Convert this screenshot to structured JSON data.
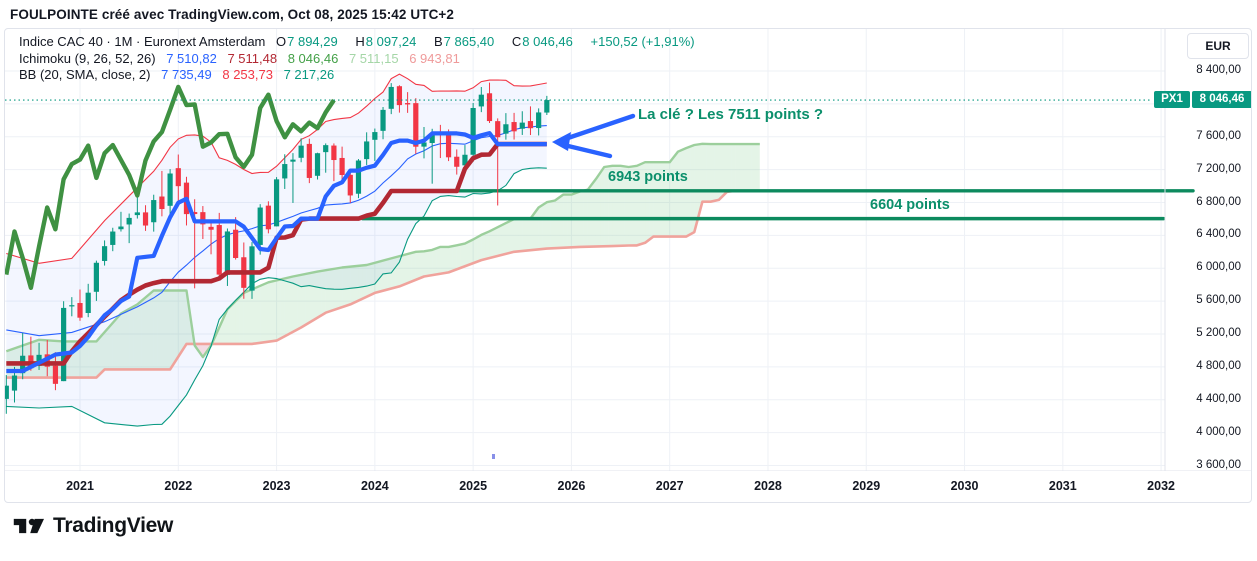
{
  "header": {
    "title": "FOULPOINTE créé avec TradingView.com, Oct 08, 2025 15:42 UTC+2"
  },
  "legend": {
    "main": {
      "symbol_line": "Indice CAC 40 · 1M · Euronext Amsterdam",
      "o_label": "O",
      "o": "7 894,29",
      "h_label": "H",
      "h": "8 097,24",
      "l_label": "B",
      "l": "7 865,40",
      "c_label": "C",
      "c": "8 046,46",
      "change": "+150,52 (+1,91%)"
    },
    "ichimoku": {
      "name": "Ichimoku (9, 26, 52, 26)",
      "conversion": "7 510,82",
      "base": "7 511,48",
      "lagging": "8 046,46",
      "lead1": "7 511,15",
      "lead2": "6 943,81"
    },
    "bb": {
      "name": "BB (20, SMA, close, 2)",
      "basis": "7 735,49",
      "upper": "8 253,73",
      "lower": "7 217,26"
    }
  },
  "annotations": {
    "key_text": "La clé ? Les 7511 points ?",
    "level1_text": "6943 points",
    "level2_text": "6604 points"
  },
  "price_axis": {
    "currency_label": "EUR",
    "ticker_badge": "PX1",
    "last_price_label": "8 046,46",
    "ticks": [
      {
        "price": 8400,
        "label": "8 400,00"
      },
      {
        "price": 8000,
        "label": ""
      },
      {
        "price": 7600,
        "label": "7 600,00"
      },
      {
        "price": 7200,
        "label": "7 200,00"
      },
      {
        "price": 6800,
        "label": "6 800,00"
      },
      {
        "price": 6400,
        "label": "6 400,00"
      },
      {
        "price": 6000,
        "label": "6 000,00"
      },
      {
        "price": 5600,
        "label": "5 600,00"
      },
      {
        "price": 5200,
        "label": "5 200,00"
      },
      {
        "price": 4800,
        "label": "4 800,00"
      },
      {
        "price": 4400,
        "label": "4 400,00"
      },
      {
        "price": 4000,
        "label": "4 000,00"
      },
      {
        "price": 3600,
        "label": "3 600,00"
      }
    ]
  },
  "time_axis": {
    "years": [
      "2021",
      "2022",
      "2023",
      "2024",
      "2025",
      "2026",
      "2027",
      "2028",
      "2029",
      "2030",
      "2031",
      "2032"
    ]
  },
  "footer": {
    "brand": "TradingView"
  },
  "colors": {
    "up": "#089981",
    "down": "#f23645",
    "tenkan": "#2962ff",
    "kijun": "#b22833",
    "chikou": "#3f9142",
    "lead1": "#9ccf9c",
    "lead2": "#f0a39c",
    "cloud_green": "rgba(103,194,122,0.18)",
    "cloud_red": "rgba(247,124,128,0.22)",
    "bb_line_basis": "#2962ff",
    "bb_line_upper": "#f23645",
    "bb_line_lower": "#089981",
    "bb_fill": "rgba(41,98,255,0.055)",
    "level": "#0c8a5e",
    "arrow": "#2962ff",
    "grid": "#eef1f6",
    "border": "#e0e3eb",
    "text": "#131722",
    "last_price_line": "#089981"
  },
  "chart_data": {
    "type": "candlestick",
    "symbol": "Indice CAC 40 (PX1)",
    "interval": "1M",
    "ylim": [
      3400,
      8500
    ],
    "grid": true,
    "candles": [
      [
        "2020-04",
        4411,
        4701,
        4230,
        4572
      ],
      [
        "2020-05",
        4512,
        4800,
        4367,
        4695
      ],
      [
        "2020-06",
        4724,
        5213,
        4650,
        4936
      ],
      [
        "2020-07",
        4940,
        5168,
        4754,
        4784
      ],
      [
        "2020-08",
        4813,
        5093,
        4763,
        4947
      ],
      [
        "2020-09",
        4953,
        5127,
        4687,
        4803
      ],
      [
        "2020-10",
        4815,
        4979,
        4517,
        4594
      ],
      [
        "2020-11",
        4627,
        5599,
        4627,
        5518
      ],
      [
        "2020-12",
        5536,
        5649,
        5416,
        5551
      ],
      [
        "2021-01",
        5578,
        5742,
        5361,
        5399
      ],
      [
        "2021-02",
        5456,
        5811,
        5405,
        5703
      ],
      [
        "2021-03",
        5714,
        6093,
        5603,
        6067
      ],
      [
        "2021-04",
        6089,
        6339,
        6033,
        6269
      ],
      [
        "2021-05",
        6284,
        6493,
        6208,
        6447
      ],
      [
        "2021-06",
        6475,
        6687,
        6447,
        6508
      ],
      [
        "2021-07",
        6533,
        6666,
        6306,
        6613
      ],
      [
        "2021-08",
        6647,
        6896,
        6605,
        6680
      ],
      [
        "2021-09",
        6680,
        6767,
        6455,
        6520
      ],
      [
        "2021-10",
        6560,
        6895,
        6446,
        6830
      ],
      [
        "2021-11",
        6873,
        7184,
        6632,
        6721
      ],
      [
        "2021-12",
        6760,
        7206,
        6650,
        7153
      ],
      [
        "2022-01",
        7218,
        7384,
        6756,
        6999
      ],
      [
        "2022-02",
        7042,
        7113,
        6521,
        6659
      ],
      [
        "2022-03",
        6684,
        6840,
        5756,
        6660
      ],
      [
        "2022-04",
        6683,
        6757,
        6356,
        6534
      ],
      [
        "2022-05",
        6504,
        6586,
        6170,
        6469
      ],
      [
        "2022-06",
        6526,
        6674,
        5887,
        5923
      ],
      [
        "2022-07",
        5920,
        6484,
        5785,
        6448
      ],
      [
        "2022-08",
        6469,
        6622,
        6106,
        6125
      ],
      [
        "2022-09",
        6134,
        6314,
        5629,
        5762
      ],
      [
        "2022-10",
        5728,
        6318,
        5628,
        6267
      ],
      [
        "2022-11",
        6284,
        6780,
        6166,
        6739
      ],
      [
        "2022-12",
        6762,
        6815,
        6425,
        6474
      ],
      [
        "2023-01",
        6510,
        7109,
        6510,
        7082
      ],
      [
        "2023-02",
        7093,
        7387,
        6965,
        7268
      ],
      [
        "2023-03",
        7297,
        7401,
        6795,
        7322
      ],
      [
        "2023-04",
        7344,
        7581,
        7290,
        7492
      ],
      [
        "2023-05",
        7513,
        7577,
        7036,
        7099
      ],
      [
        "2023-06",
        7125,
        7406,
        7080,
        7400
      ],
      [
        "2023-07",
        7413,
        7519,
        7163,
        7498
      ],
      [
        "2023-08",
        7493,
        7519,
        7060,
        7317
      ],
      [
        "2023-09",
        7342,
        7480,
        7072,
        7135
      ],
      [
        "2023-10",
        7137,
        7180,
        6795,
        6886
      ],
      [
        "2023-11",
        6907,
        7329,
        6853,
        7311
      ],
      [
        "2023-12",
        7328,
        7654,
        7257,
        7543
      ],
      [
        "2024-01",
        7563,
        7700,
        7306,
        7657
      ],
      [
        "2024-02",
        7672,
        7962,
        7570,
        7927
      ],
      [
        "2024-03",
        7940,
        8253,
        7875,
        8206
      ],
      [
        "2024-04",
        8215,
        8226,
        7893,
        7985
      ],
      [
        "2024-05",
        8010,
        8143,
        7890,
        7993
      ],
      [
        "2024-06",
        8009,
        8070,
        7391,
        7479
      ],
      [
        "2024-07",
        7480,
        7719,
        7337,
        7531
      ],
      [
        "2024-08",
        7524,
        7697,
        7029,
        7631
      ],
      [
        "2024-09",
        7651,
        7745,
        7341,
        7636
      ],
      [
        "2024-10",
        7650,
        7689,
        7304,
        7350
      ],
      [
        "2024-11",
        7357,
        7446,
        7140,
        7235
      ],
      [
        "2024-12",
        7252,
        7499,
        7169,
        7381
      ],
      [
        "2025-01",
        7381,
        8011,
        7296,
        7950
      ],
      [
        "2025-02",
        7969,
        8206,
        7900,
        8112
      ],
      [
        "2025-03",
        8129,
        8258,
        7768,
        7791
      ],
      [
        "2025-04",
        7790,
        7824,
        6764,
        7594
      ],
      [
        "2025-05",
        7638,
        7888,
        7565,
        7752
      ],
      [
        "2025-06",
        7779,
        7890,
        7566,
        7666
      ],
      [
        "2025-07",
        7698,
        7910,
        7622,
        7772
      ],
      [
        "2025-08",
        7791,
        7969,
        7621,
        7704
      ],
      [
        "2025-09",
        7706,
        7946,
        7616,
        7896
      ],
      [
        "2025-10",
        7894.29,
        8097.24,
        7865.4,
        8046.46
      ]
    ],
    "ichimoku": {
      "params": [
        9,
        26,
        52,
        26
      ],
      "chikou_shift": 26,
      "tenkan": [
        [
          0,
          4750
        ],
        [
          2,
          4750
        ],
        [
          4,
          4850
        ],
        [
          6,
          4950
        ],
        [
          8,
          4976
        ],
        [
          9,
          5054
        ],
        [
          10,
          5164
        ],
        [
          11,
          5305
        ],
        [
          12,
          5428
        ],
        [
          13,
          5505
        ],
        [
          14,
          5602
        ],
        [
          15,
          5657
        ],
        [
          16,
          6128
        ],
        [
          18,
          6150
        ],
        [
          19,
          6394
        ],
        [
          20,
          6620
        ],
        [
          21,
          6796
        ],
        [
          22,
          6845
        ],
        [
          23,
          6570
        ],
        [
          28,
          6570
        ],
        [
          29,
          6506
        ],
        [
          30,
          6370
        ],
        [
          31,
          6234
        ],
        [
          32,
          6222
        ],
        [
          33,
          6368
        ],
        [
          34,
          6508
        ],
        [
          35,
          6514
        ],
        [
          36,
          6604
        ],
        [
          38,
          6604
        ],
        [
          39,
          6874
        ],
        [
          40,
          7003
        ],
        [
          41,
          7046
        ],
        [
          42,
          7188
        ],
        [
          43,
          7188
        ],
        [
          44,
          7224
        ],
        [
          45,
          7248
        ],
        [
          46,
          7378
        ],
        [
          47,
          7524
        ],
        [
          48,
          7553
        ],
        [
          49,
          7553
        ],
        [
          50,
          7524
        ],
        [
          51,
          7553
        ],
        [
          52,
          7641
        ],
        [
          55,
          7641
        ],
        [
          56,
          7628
        ],
        [
          57,
          7586
        ],
        [
          58,
          7618
        ],
        [
          59,
          7644
        ],
        [
          60,
          7511
        ],
        [
          66,
          7511
        ]
      ],
      "kijun": [
        [
          0,
          4843
        ],
        [
          7,
          4843
        ],
        [
          8,
          4990
        ],
        [
          9,
          5110
        ],
        [
          10,
          5210
        ],
        [
          11,
          5310
        ],
        [
          12,
          5410
        ],
        [
          13,
          5510
        ],
        [
          14,
          5610
        ],
        [
          15,
          5680
        ],
        [
          16,
          5740
        ],
        [
          17,
          5790
        ],
        [
          18,
          5820
        ],
        [
          19,
          5843
        ],
        [
          25,
          5843
        ],
        [
          26,
          5876
        ],
        [
          27,
          5950
        ],
        [
          31,
          5950
        ],
        [
          32,
          6006
        ],
        [
          33,
          6372
        ],
        [
          34,
          6374
        ],
        [
          35,
          6403
        ],
        [
          36,
          6592
        ],
        [
          37,
          6604
        ],
        [
          43,
          6604
        ],
        [
          44,
          6641
        ],
        [
          45,
          6664
        ],
        [
          46,
          6795
        ],
        [
          47,
          6940
        ],
        [
          55,
          6940
        ],
        [
          56,
          7210
        ],
        [
          57,
          7339
        ],
        [
          58,
          7382
        ],
        [
          59,
          7384
        ],
        [
          60,
          7511
        ],
        [
          66,
          7511
        ]
      ],
      "senkou_a": [
        [
          0,
          4990
        ],
        [
          4,
          5130
        ],
        [
          7,
          5110
        ],
        [
          11,
          5110
        ],
        [
          14,
          5450
        ],
        [
          16,
          5560
        ],
        [
          18,
          5730
        ],
        [
          22,
          5730
        ],
        [
          23,
          5060
        ],
        [
          24,
          4920
        ],
        [
          25,
          5060
        ],
        [
          27,
          5500
        ],
        [
          29,
          5700
        ],
        [
          32,
          5830
        ],
        [
          35,
          5900
        ],
        [
          38,
          5960
        ],
        [
          41,
          6010
        ],
        [
          44,
          6040
        ],
        [
          47,
          6120
        ],
        [
          50,
          6200
        ],
        [
          51,
          6207
        ],
        [
          52,
          6223
        ],
        [
          53,
          6260
        ],
        [
          54,
          6260
        ],
        [
          55,
          6280
        ],
        [
          56,
          6300
        ],
        [
          57,
          6350
        ],
        [
          58,
          6406
        ],
        [
          59,
          6450
        ],
        [
          60,
          6500
        ],
        [
          61,
          6550
        ],
        [
          62,
          6598
        ],
        [
          63,
          6605
        ],
        [
          64,
          6605
        ],
        [
          65,
          6739
        ],
        [
          66,
          6804
        ],
        [
          67,
          6825
        ],
        [
          68,
          6896
        ],
        [
          69,
          6896
        ],
        [
          70,
          6933
        ],
        [
          71,
          6956
        ],
        [
          72,
          7087
        ],
        [
          73,
          7232
        ],
        [
          74,
          7247
        ],
        [
          75,
          7247
        ],
        [
          76,
          7232
        ],
        [
          77,
          7247
        ],
        [
          78,
          7291
        ],
        [
          81,
          7291
        ],
        [
          82,
          7418
        ],
        [
          83,
          7462
        ],
        [
          84,
          7500
        ],
        [
          85,
          7514
        ],
        [
          86,
          7511
        ],
        [
          92,
          7511
        ]
      ],
      "senkou_b": [
        [
          0,
          4670
        ],
        [
          11,
          4670
        ],
        [
          12,
          4770
        ],
        [
          20,
          4770
        ],
        [
          22,
          5080
        ],
        [
          30,
          5080
        ],
        [
          33,
          5120
        ],
        [
          36,
          5280
        ],
        [
          39,
          5460
        ],
        [
          42,
          5560
        ],
        [
          45,
          5700
        ],
        [
          48,
          5780
        ],
        [
          51,
          5900
        ],
        [
          54,
          5950
        ],
        [
          58,
          6100
        ],
        [
          62,
          6200
        ],
        [
          66,
          6240
        ],
        [
          70,
          6260
        ],
        [
          74,
          6270
        ],
        [
          76,
          6277
        ],
        [
          77,
          6278
        ],
        [
          78,
          6310
        ],
        [
          79,
          6385
        ],
        [
          83,
          6385
        ],
        [
          84,
          6440
        ],
        [
          85,
          6810
        ],
        [
          86,
          6810
        ],
        [
          87,
          6832
        ],
        [
          88,
          6930
        ],
        [
          89,
          6943
        ],
        [
          92,
          6943
        ]
      ]
    },
    "bb": {
      "period": 20,
      "mult": 2,
      "basis_prefix": [
        [
          0,
          5250
        ],
        [
          4,
          5180
        ],
        [
          8,
          5220
        ],
        [
          12,
          5350
        ],
        [
          16,
          5530
        ],
        [
          18,
          5640
        ]
      ],
      "upper_prefix": [
        [
          0,
          6180
        ],
        [
          4,
          6060
        ],
        [
          8,
          6120
        ],
        [
          12,
          6580
        ],
        [
          16,
          6980
        ],
        [
          18,
          7180
        ]
      ],
      "lower_prefix": [
        [
          0,
          4320
        ],
        [
          4,
          4300
        ],
        [
          8,
          4320
        ],
        [
          12,
          4120
        ],
        [
          16,
          4080
        ],
        [
          18,
          4100
        ]
      ]
    },
    "levels": [
      {
        "price": 6943,
        "from_month": 51.0,
        "to_month": 144.9
      },
      {
        "price": 6604,
        "from_month": 43.5,
        "to_month": 141.3
      }
    ],
    "last_price": 8046.46
  }
}
